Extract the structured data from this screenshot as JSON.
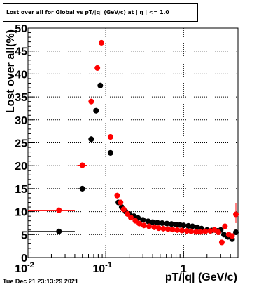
{
  "title": "Lost over all for Global vs pT/|q| (GeV/c) at | η | <= 1.0",
  "datestamp": "Tue Dec 21 23:13:29 2021",
  "chart_data": {
    "type": "scatter",
    "title": "Lost over all for Global vs pT/|q| (GeV/c) at | η | <= 1.0",
    "xlabel": "pT/|q| (GeV/c)",
    "ylabel": "Lost over all(%)",
    "xscale": "log",
    "xlim": [
      0.01,
      5
    ],
    "ylim": [
      0,
      50
    ],
    "grid": true,
    "x_tick_labels": [
      "10^-2",
      "10^-1",
      "1"
    ],
    "y_tick_labels": [
      "0",
      "5",
      "10",
      "15",
      "20",
      "25",
      "30",
      "35",
      "40",
      "45",
      "50"
    ],
    "series": [
      {
        "color": "#000000",
        "points": [
          {
            "x": 0.025,
            "y": 5.7,
            "xlow": 0.01,
            "xhigh": 0.04
          },
          {
            "x": 0.05,
            "y": 15.0,
            "xlow": 0.043,
            "xhigh": 0.057
          },
          {
            "x": 0.065,
            "y": 25.8,
            "xlow": 0.06,
            "xhigh": 0.07
          },
          {
            "x": 0.075,
            "y": 32.0,
            "xlow": 0.07,
            "xhigh": 0.08
          },
          {
            "x": 0.085,
            "y": 37.5
          },
          {
            "x": 0.115,
            "y": 22.8
          },
          {
            "x": 0.145,
            "y": 12.0
          },
          {
            "x": 0.16,
            "y": 11.0
          },
          {
            "x": 0.18,
            "y": 10.0
          },
          {
            "x": 0.2,
            "y": 9.5
          },
          {
            "x": 0.23,
            "y": 9.0
          },
          {
            "x": 0.26,
            "y": 8.6
          },
          {
            "x": 0.3,
            "y": 8.2
          },
          {
            "x": 0.35,
            "y": 7.9
          },
          {
            "x": 0.4,
            "y": 7.7
          },
          {
            "x": 0.46,
            "y": 7.6
          },
          {
            "x": 0.53,
            "y": 7.5
          },
          {
            "x": 0.61,
            "y": 7.4
          },
          {
            "x": 0.7,
            "y": 7.3
          },
          {
            "x": 0.8,
            "y": 7.2
          },
          {
            "x": 0.9,
            "y": 7.1
          },
          {
            "x": 1.0,
            "y": 7.0
          },
          {
            "x": 1.15,
            "y": 6.9
          },
          {
            "x": 1.3,
            "y": 6.8
          },
          {
            "x": 1.5,
            "y": 6.6
          },
          {
            "x": 1.7,
            "y": 6.3
          },
          {
            "x": 2.0,
            "y": 6.0
          },
          {
            "x": 2.3,
            "y": 5.9
          },
          {
            "x": 2.7,
            "y": 5.8
          },
          {
            "x": 3.0,
            "y": 6.0
          },
          {
            "x": 3.3,
            "y": 5.0
          },
          {
            "x": 3.7,
            "y": 4.5
          },
          {
            "x": 4.2,
            "y": 4.0
          },
          {
            "x": 4.7,
            "y": 5.5
          }
        ]
      },
      {
        "color": "#ff0000",
        "points": [
          {
            "x": 0.025,
            "y": 10.3,
            "xlow": 0.01,
            "xhigh": 0.04
          },
          {
            "x": 0.05,
            "y": 20.1,
            "xlow": 0.043,
            "xhigh": 0.057
          },
          {
            "x": 0.065,
            "y": 34.0
          },
          {
            "x": 0.078,
            "y": 41.3
          },
          {
            "x": 0.088,
            "y": 46.8
          },
          {
            "x": 0.115,
            "y": 26.3
          },
          {
            "x": 0.14,
            "y": 13.5
          },
          {
            "x": 0.155,
            "y": 12.0
          },
          {
            "x": 0.17,
            "y": 10.5
          },
          {
            "x": 0.19,
            "y": 9.5
          },
          {
            "x": 0.21,
            "y": 8.7
          },
          {
            "x": 0.24,
            "y": 8.0
          },
          {
            "x": 0.27,
            "y": 7.4
          },
          {
            "x": 0.31,
            "y": 7.0
          },
          {
            "x": 0.36,
            "y": 6.8
          },
          {
            "x": 0.42,
            "y": 6.6
          },
          {
            "x": 0.48,
            "y": 6.4
          },
          {
            "x": 0.55,
            "y": 6.3
          },
          {
            "x": 0.63,
            "y": 6.2
          },
          {
            "x": 0.72,
            "y": 6.1
          },
          {
            "x": 0.83,
            "y": 6.0
          },
          {
            "x": 0.95,
            "y": 5.9
          },
          {
            "x": 1.1,
            "y": 5.8
          },
          {
            "x": 1.25,
            "y": 5.7
          },
          {
            "x": 1.45,
            "y": 5.6
          },
          {
            "x": 1.65,
            "y": 5.6
          },
          {
            "x": 1.9,
            "y": 5.7
          },
          {
            "x": 2.2,
            "y": 5.8
          },
          {
            "x": 2.5,
            "y": 6.0
          },
          {
            "x": 2.8,
            "y": 5.5
          },
          {
            "x": 3.1,
            "y": 3.3
          },
          {
            "x": 3.4,
            "y": 6.8
          },
          {
            "x": 3.8,
            "y": 5.0
          },
          {
            "x": 4.2,
            "y": 4.7
          },
          {
            "x": 4.7,
            "y": 9.4,
            "ylow": 7.5,
            "yhigh": 11.8
          }
        ]
      }
    ]
  }
}
